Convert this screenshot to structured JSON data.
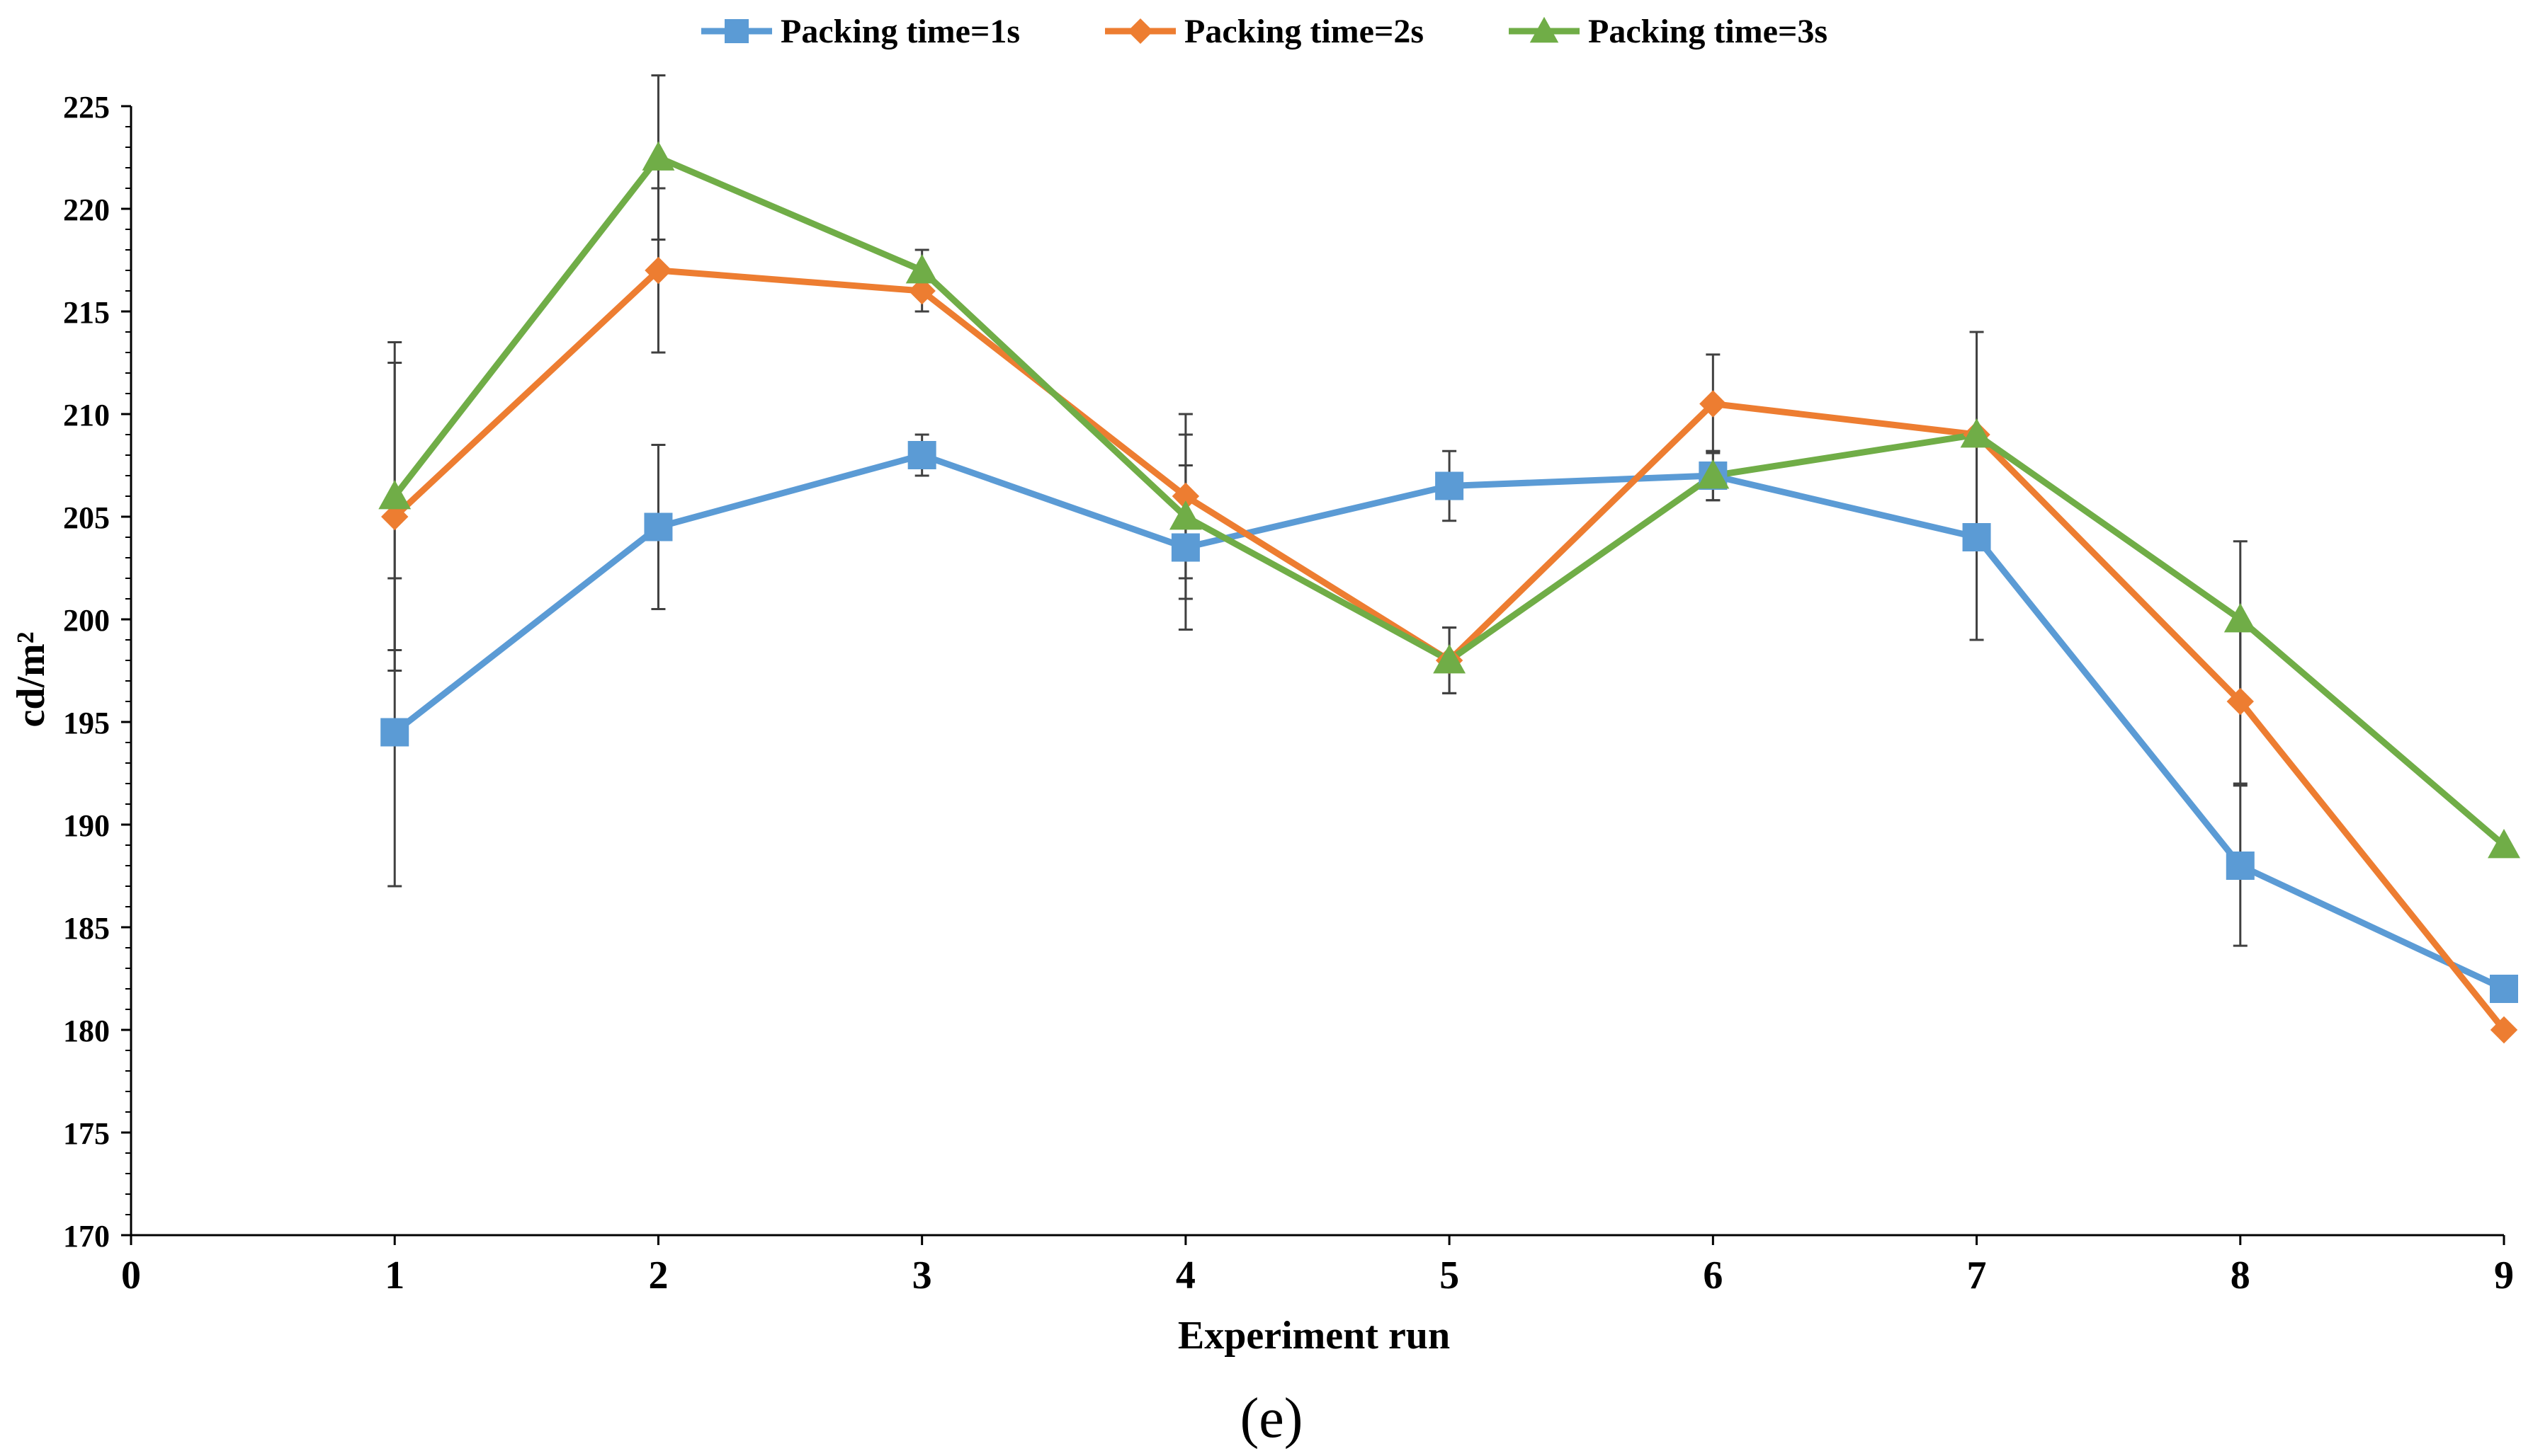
{
  "chart_data": {
    "type": "line",
    "title": "",
    "caption": "(e)",
    "xlabel": "Experiment run",
    "ylabel": "cd/m²",
    "x": [
      1,
      2,
      3,
      4,
      5,
      6,
      7,
      8,
      9
    ],
    "xlim": [
      0,
      9
    ],
    "ylim": [
      170,
      225
    ],
    "x_ticks": [
      "0",
      "1",
      "2",
      "3",
      "4",
      "5",
      "6",
      "7",
      "8",
      "9"
    ],
    "y_ticks": [
      "170",
      "175",
      "180",
      "185",
      "190",
      "195",
      "200",
      "205",
      "210",
      "215",
      "220",
      "225"
    ],
    "legend_position": "top-center",
    "series": [
      {
        "name": "Packing time=1s",
        "color": "#5B9BD5",
        "marker": "square",
        "values": [
          194.5,
          204.5,
          208,
          203.5,
          206.5,
          207,
          204,
          188,
          182
        ],
        "errors": [
          7.5,
          4,
          1,
          4,
          1.7,
          1.2,
          5,
          3.9,
          null
        ]
      },
      {
        "name": "Packing time=2s",
        "color": "#ED7D31",
        "marker": "diamond",
        "values": [
          205,
          217,
          216,
          206,
          198,
          210.5,
          209,
          196,
          180
        ],
        "errors": [
          7.5,
          4,
          1,
          4,
          1.6,
          2.4,
          null,
          4,
          null
        ]
      },
      {
        "name": "Packing time=3s",
        "color": "#70AD47",
        "marker": "triangle",
        "values": [
          206,
          222.5,
          217,
          205,
          198,
          207,
          209,
          200,
          189
        ],
        "errors": [
          7.5,
          4,
          1,
          4,
          1.6,
          1.2,
          5,
          3.8,
          null
        ]
      }
    ]
  }
}
